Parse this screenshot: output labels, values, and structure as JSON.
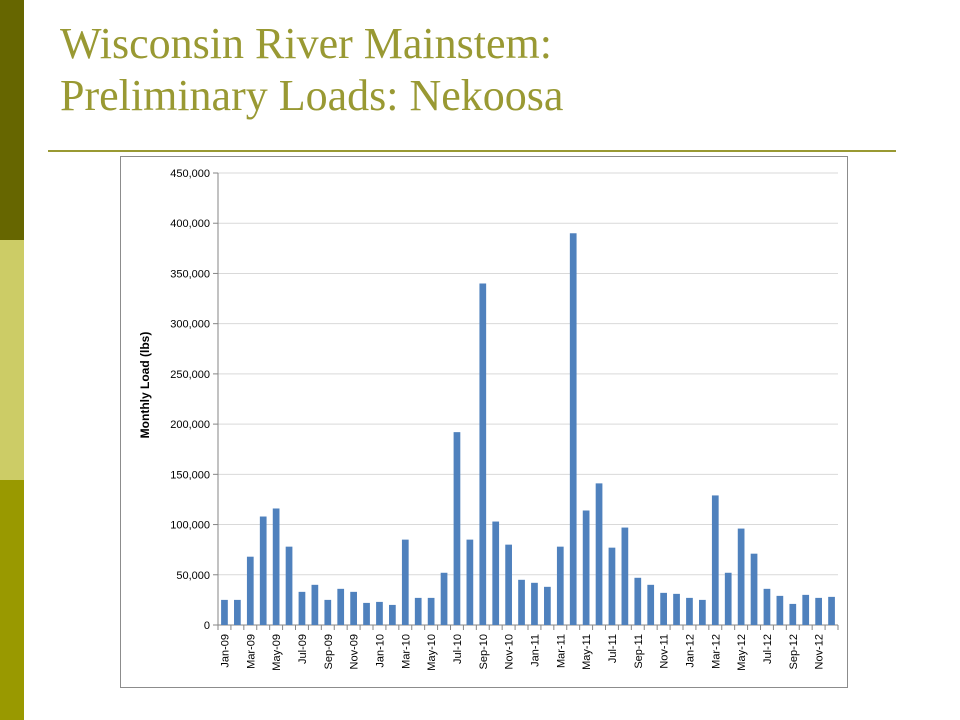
{
  "slide": {
    "title_line1": "Wisconsin River Mainstem:",
    "title_line2": "Preliminary Loads: Nekoosa",
    "colors": {
      "accent": "#999933",
      "bar": "#4f81bd",
      "bar_dark": "#666600",
      "bar_light": "#cccc66",
      "bar_mid": "#999900"
    }
  },
  "chart_data": {
    "type": "bar",
    "title": "",
    "xlabel": "",
    "ylabel": "Monthly Load (lbs)",
    "ylim": [
      0,
      450000
    ],
    "yticks": [
      0,
      50000,
      100000,
      150000,
      200000,
      250000,
      300000,
      350000,
      400000,
      450000
    ],
    "ytick_labels": [
      "0",
      "50,000",
      "100,000",
      "150,000",
      "200,000",
      "250,000",
      "300,000",
      "350,000",
      "400,000",
      "450,000"
    ],
    "grid": true,
    "legend": "none",
    "categories": [
      "Jan-09",
      "Feb-09",
      "Mar-09",
      "Apr-09",
      "May-09",
      "Jun-09",
      "Jul-09",
      "Aug-09",
      "Sep-09",
      "Oct-09",
      "Nov-09",
      "Dec-09",
      "Jan-10",
      "Feb-10",
      "Mar-10",
      "Apr-10",
      "May-10",
      "Jun-10",
      "Jul-10",
      "Aug-10",
      "Sep-10",
      "Oct-10",
      "Nov-10",
      "Dec-10",
      "Jan-11",
      "Feb-11",
      "Mar-11",
      "Apr-11",
      "May-11",
      "Jun-11",
      "Jul-11",
      "Aug-11",
      "Sep-11",
      "Oct-11",
      "Nov-11",
      "Dec-11",
      "Jan-12",
      "Feb-12",
      "Mar-12",
      "Apr-12",
      "May-12",
      "Jun-12",
      "Jul-12",
      "Aug-12",
      "Sep-12",
      "Oct-12",
      "Nov-12",
      "Dec-12"
    ],
    "shown_tick_labels": [
      "Jan-09",
      "Mar-09",
      "May-09",
      "Jul-09",
      "Sep-09",
      "Nov-09",
      "Jan-10",
      "Mar-10",
      "May-10",
      "Jul-10",
      "Sep-10",
      "Nov-10",
      "Jan-11",
      "Mar-11",
      "May-11",
      "Jul-11",
      "Sep-11",
      "Nov-11",
      "Jan-12",
      "Mar-12",
      "May-12",
      "Jul-12",
      "Sep-12",
      "Nov-12"
    ],
    "values": [
      25000,
      25000,
      68000,
      108000,
      116000,
      78000,
      33000,
      40000,
      25000,
      36000,
      33000,
      22000,
      23000,
      20000,
      85000,
      27000,
      27000,
      52000,
      192000,
      85000,
      340000,
      103000,
      80000,
      45000,
      42000,
      38000,
      78000,
      390000,
      114000,
      141000,
      77000,
      97000,
      47000,
      40000,
      32000,
      31000,
      27000,
      25000,
      129000,
      52000,
      96000,
      71000,
      36000,
      29000,
      21000,
      30000,
      27000,
      28000
    ]
  }
}
